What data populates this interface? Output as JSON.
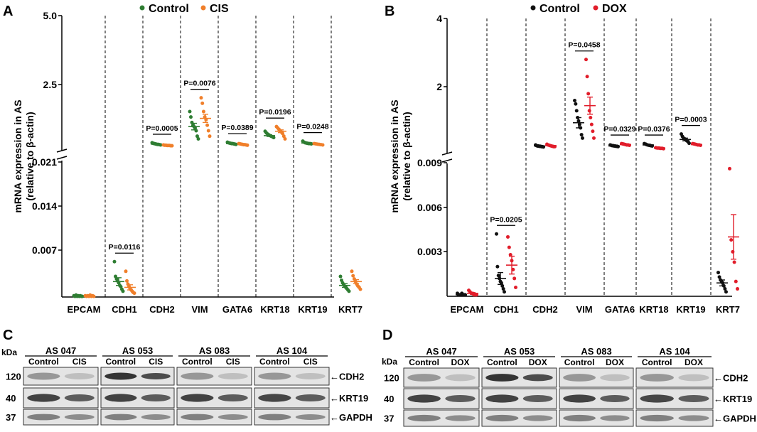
{
  "panel_A": {
    "letter": "A",
    "legend": [
      "Control",
      "CIS"
    ],
    "ylabel_line1": "mRNA expression in AS",
    "ylabel_line2": "(relative to β-actin)",
    "upper_ticks": [
      "5.0",
      "2.5"
    ],
    "lower_ticks": [
      "0.021",
      "0.014",
      "0.007"
    ],
    "categories": [
      "EPCAM",
      "CDH1",
      "CDH2",
      "VIM",
      "GATA6",
      "KRT18",
      "KRT19",
      "KRT7"
    ],
    "pvalues": [
      {
        "cat": 1,
        "text": "P=0.0116"
      },
      {
        "cat": 2,
        "text": "P=0.0005"
      },
      {
        "cat": 3,
        "text": "P=0.0076"
      },
      {
        "cat": 4,
        "text": "P=0.0389"
      },
      {
        "cat": 5,
        "text": "P=0.0196"
      },
      {
        "cat": 6,
        "text": "P=0.0248"
      }
    ]
  },
  "panel_B": {
    "letter": "B",
    "legend": [
      "Control",
      "DOX"
    ],
    "ylabel_line1": "mRNA expression in AS",
    "ylabel_line2": "(relative to β-actin)",
    "upper_ticks": [
      "4",
      "2"
    ],
    "lower_ticks": [
      "0.009",
      "0.006",
      "0.003"
    ],
    "categories": [
      "EPCAM",
      "CDH1",
      "CDH2",
      "VIM",
      "GATA6",
      "KRT18",
      "KRT19",
      "KRT7"
    ],
    "pvalues": [
      {
        "cat": 1,
        "text": "P=0.0205"
      },
      {
        "cat": 3,
        "text": "P=0.0458"
      },
      {
        "cat": 4,
        "text": "P=0.0329"
      },
      {
        "cat": 5,
        "text": "P=0.0376"
      },
      {
        "cat": 6,
        "text": "P=0.0003"
      }
    ]
  },
  "panel_C": {
    "letter": "C",
    "kda_label": "kDa",
    "samples": [
      "AS 047",
      "AS 053",
      "AS 083",
      "AS 104"
    ],
    "lanes": [
      "Control",
      "CIS"
    ],
    "markers": [
      "120",
      "40",
      "37"
    ],
    "proteins": [
      "CDH2",
      "KRT19",
      "GAPDH"
    ]
  },
  "panel_D": {
    "letter": "D",
    "kda_label": "kDa",
    "samples": [
      "AS 047",
      "AS 053",
      "AS 083",
      "AS 104"
    ],
    "lanes": [
      "Control",
      "DOX"
    ],
    "markers": [
      "120",
      "40",
      "37"
    ],
    "proteins": [
      "CDH2",
      "KRT19",
      "GAPDH"
    ]
  },
  "colors": {
    "control_A": "#2e7d32",
    "treat_A": "#f07f2a",
    "control_B": "#111111",
    "treat_B": "#e11d2a"
  },
  "chart_data": [
    {
      "type": "scatter",
      "title": "A",
      "ylabel": "mRNA expression in AS (relative to β-actin)",
      "categories": [
        "EPCAM",
        "CDH1",
        "CDH2",
        "VIM",
        "GATA6",
        "KRT18",
        "KRT19",
        "KRT7"
      ],
      "y_axis_break": {
        "lower_range": [
          0,
          0.021
        ],
        "upper_range": [
          0.021,
          5.0
        ]
      },
      "series": [
        {
          "name": "Control",
          "color": "#2e7d32",
          "points": [
            [
              0.0002,
              0.0001,
              0.0003,
              0.0001,
              0.0002,
              0.0001,
              0.0002,
              0.0001,
              0.0001
            ],
            [
              0.0055,
              0.0032,
              0.0028,
              0.0025,
              0.0022,
              0.0018,
              0.0016,
              0.0012,
              0.0009
            ],
            [
              0.36,
              0.34,
              0.33,
              0.32,
              0.31,
              0.3,
              0.3,
              0.29,
              0.28
            ],
            [
              1.5,
              1.3,
              1.1,
              1.0,
              0.95,
              0.9,
              0.8,
              0.6,
              0.5
            ],
            [
              0.38,
              0.36,
              0.35,
              0.34,
              0.33,
              0.33,
              0.32,
              0.31,
              0.3
            ],
            [
              0.78,
              0.72,
              0.68,
              0.65,
              0.62,
              0.6,
              0.58,
              0.55
            ],
            [
              0.42,
              0.38,
              0.36,
              0.35,
              0.34,
              0.33,
              0.33,
              0.32
            ],
            [
              0.0032,
              0.0026,
              0.0022,
              0.0019,
              0.0017,
              0.0015,
              0.0013,
              0.0011,
              0.0009
            ]
          ],
          "mean": [
            0.00015,
            0.0024,
            0.31,
            0.95,
            0.33,
            0.62,
            0.35,
            0.0018
          ],
          "sem": [
            5e-05,
            0.0006,
            0.01,
            0.12,
            0.01,
            0.03,
            0.01,
            0.0003
          ]
        },
        {
          "name": "CIS",
          "color": "#f07f2a",
          "points": [
            [
              0.0002,
              0.0001,
              0.0002,
              0.0001,
              0.0003,
              0.0001,
              0.0002,
              0.0001
            ],
            [
              0.004,
              0.0025,
              0.002,
              0.0016,
              0.0013,
              0.0011,
              0.0009,
              0.0007,
              0.0006
            ],
            [
              0.28,
              0.27,
              0.27,
              0.26,
              0.26,
              0.26,
              0.25,
              0.25
            ],
            [
              2.0,
              1.8,
              1.5,
              1.3,
              1.2,
              1.0,
              0.8,
              0.6
            ],
            [
              0.33,
              0.32,
              0.31,
              0.3,
              0.29,
              0.29,
              0.28,
              0.27
            ],
            [
              0.95,
              0.9,
              0.85,
              0.8,
              0.75,
              0.7,
              0.6,
              0.5
            ],
            [
              0.33,
              0.32,
              0.31,
              0.3,
              0.29,
              0.28
            ],
            [
              0.004,
              0.0033,
              0.0028,
              0.0024,
              0.002,
              0.0017,
              0.0015,
              0.0012
            ]
          ],
          "mean": [
            0.00015,
            0.0015,
            0.26,
            1.25,
            0.3,
            0.78,
            0.3,
            0.0024
          ],
          "sem": [
            5e-05,
            0.0004,
            0.005,
            0.15,
            0.008,
            0.05,
            0.008,
            0.0003
          ]
        }
      ]
    },
    {
      "type": "scatter",
      "title": "B",
      "ylabel": "mRNA expression in AS (relative to β-actin)",
      "categories": [
        "EPCAM",
        "CDH1",
        "CDH2",
        "VIM",
        "GATA6",
        "KRT18",
        "KRT19",
        "KRT7"
      ],
      "y_axis_break": {
        "lower_range": [
          0,
          0.009
        ],
        "upper_range": [
          0.009,
          4.0
        ]
      },
      "series": [
        {
          "name": "Control",
          "color": "#111111",
          "points": [
            [
              0.0002,
              0.0001,
              0.0001,
              0.0001,
              0.0002,
              0.0001,
              0.0001,
              0.0001
            ],
            [
              0.0042,
              0.002,
              0.0014,
              0.0012,
              0.001,
              0.0009,
              0.0007,
              0.0005,
              0.0003
            ],
            [
              0.3,
              0.28,
              0.27,
              0.27,
              0.26,
              0.26,
              0.25,
              0.25,
              0.24
            ],
            [
              1.6,
              1.5,
              1.3,
              1.1,
              1.0,
              0.9,
              0.8,
              0.6,
              0.5
            ],
            [
              0.3,
              0.29,
              0.28,
              0.28,
              0.27,
              0.27,
              0.26,
              0.26,
              0.25
            ],
            [
              0.34,
              0.32,
              0.3,
              0.29,
              0.28,
              0.27
            ],
            [
              0.62,
              0.55,
              0.5,
              0.48,
              0.45,
              0.42,
              0.4,
              0.35
            ],
            [
              0.0016,
              0.0013,
              0.0011,
              0.001,
              0.0009,
              0.0007,
              0.0005,
              0.0003
            ]
          ],
          "mean": [
            0.0001,
            0.0012,
            0.27,
            0.95,
            0.27,
            0.3,
            0.46,
            0.0009
          ],
          "sem": [
            3e-05,
            0.0004,
            0.01,
            0.15,
            0.01,
            0.02,
            0.04,
            0.0002
          ]
        },
        {
          "name": "DOX",
          "color": "#e11d2a",
          "points": [
            [
              0.0004,
              0.0003,
              0.0002,
              0.0002,
              0.0001,
              0.0001,
              0.0001
            ],
            [
              0.004,
              0.0033,
              0.0028,
              0.0024,
              0.0018,
              0.0012,
              0.0006
            ],
            [
              0.32,
              0.3,
              0.29,
              0.28,
              0.27,
              0.26,
              0.25,
              0.25
            ],
            [
              2.8,
              2.3,
              1.8,
              1.3,
              1.1,
              0.9,
              0.7,
              0.5
            ],
            [
              0.34,
              0.33,
              0.32,
              0.31,
              0.3,
              0.3,
              0.29
            ],
            [
              0.22,
              0.21,
              0.21,
              0.2,
              0.2,
              0.19
            ],
            [
              0.34,
              0.33,
              0.32,
              0.31,
              0.3,
              0.3,
              0.29
            ],
            [
              0.0086,
              0.0038,
              0.003,
              0.0023,
              0.001,
              0.0005
            ]
          ],
          "mean": [
            0.0002,
            0.0021,
            0.28,
            1.45,
            0.31,
            0.21,
            0.31,
            0.004
          ],
          "sem": [
            5e-05,
            0.0006,
            0.01,
            0.25,
            0.01,
            0.005,
            0.01,
            0.0015
          ]
        }
      ]
    }
  ]
}
